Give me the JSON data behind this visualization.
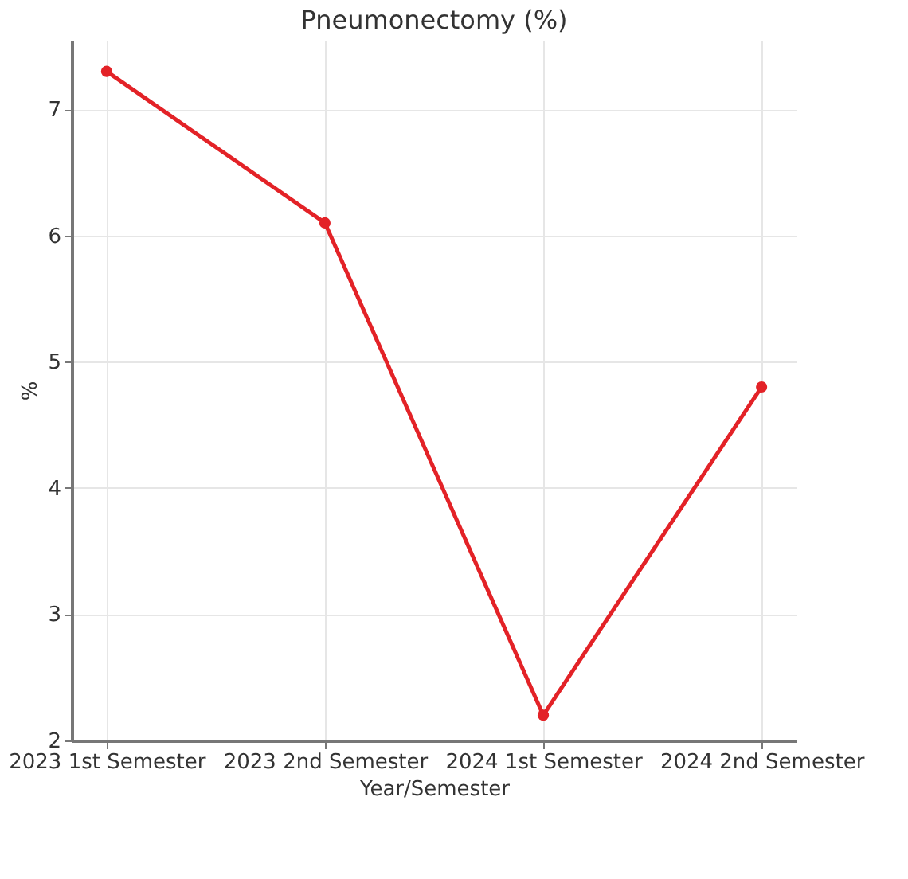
{
  "chart_data": {
    "type": "line",
    "title": "Pneumonectomy (%)",
    "xlabel": "Year/Semester",
    "ylabel": "%",
    "categories": [
      "2023 1st Semester",
      "2023 2nd Semester",
      "2024 1st Semester",
      "2024 2nd Semester"
    ],
    "series": [
      {
        "color": "#e32227",
        "values": [
          7.3,
          6.1,
          2.2,
          4.8
        ]
      }
    ],
    "ylim": [
      2,
      7.55
    ],
    "yticks": [
      2,
      3,
      4,
      5,
      6,
      7
    ],
    "grid": true,
    "marker": "circle",
    "line_style": "solid",
    "legend": false
  }
}
